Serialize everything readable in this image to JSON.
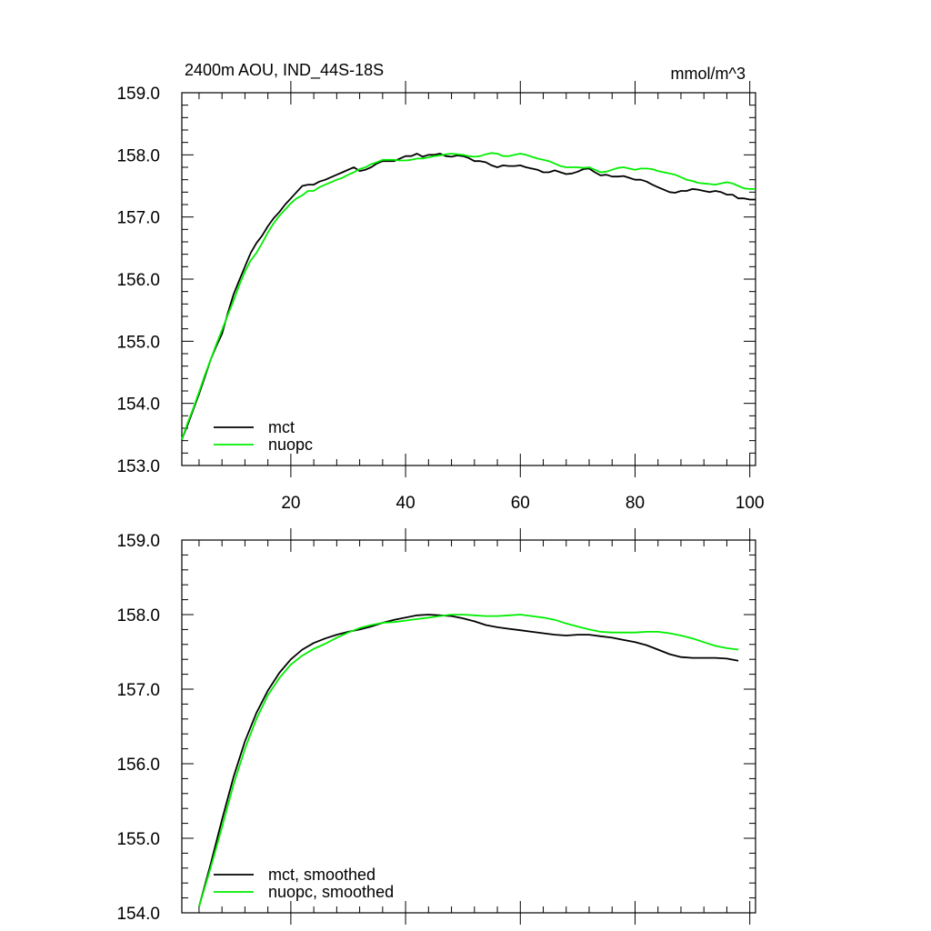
{
  "chart_data": [
    {
      "type": "line",
      "title_left": "2400m AOU, IND_44S-18S",
      "title_right": "mmol/m^3",
      "xlim": [
        1,
        101
      ],
      "ylim": [
        153.0,
        159.0
      ],
      "xticks": [
        20,
        40,
        60,
        80,
        100
      ],
      "xtick_labels": [
        "20",
        "40",
        "60",
        "80",
        "100"
      ],
      "yticks": [
        153.0,
        154.0,
        155.0,
        156.0,
        157.0,
        158.0,
        159.0
      ],
      "ytick_labels": [
        "153.0",
        "154.0",
        "155.0",
        "156.0",
        "157.0",
        "158.0",
        "159.0"
      ],
      "legend_position": "bottom-left",
      "series": [
        {
          "name": "mct",
          "color": "#000000",
          "x": [
            1,
            2,
            3,
            4,
            5,
            6,
            7,
            8,
            9,
            10,
            11,
            12,
            13,
            14,
            15,
            16,
            17,
            18,
            19,
            20,
            21,
            22,
            23,
            24,
            25,
            26,
            27,
            28,
            29,
            30,
            31,
            32,
            33,
            34,
            35,
            36,
            37,
            38,
            39,
            40,
            41,
            42,
            43,
            44,
            45,
            46,
            47,
            48,
            49,
            50,
            51,
            52,
            53,
            54,
            55,
            56,
            57,
            58,
            59,
            60,
            61,
            62,
            63,
            64,
            65,
            66,
            67,
            68,
            69,
            70,
            71,
            72,
            73,
            74,
            75,
            76,
            77,
            78,
            79,
            80,
            81,
            82,
            83,
            84,
            85,
            86,
            87,
            88,
            89,
            90,
            91,
            92,
            93,
            94,
            95,
            96,
            97,
            98,
            99,
            100,
            101
          ],
          "y": [
            153.42,
            153.65,
            153.9,
            154.15,
            154.42,
            154.7,
            154.92,
            155.12,
            155.45,
            155.75,
            155.98,
            156.2,
            156.42,
            156.58,
            156.7,
            156.85,
            156.98,
            157.08,
            157.2,
            157.3,
            157.4,
            157.5,
            157.52,
            157.52,
            157.57,
            157.6,
            157.64,
            157.68,
            157.72,
            157.76,
            157.8,
            157.74,
            157.76,
            157.8,
            157.86,
            157.9,
            157.9,
            157.9,
            157.94,
            157.98,
            157.98,
            158.02,
            157.97,
            158.0,
            158.0,
            158.02,
            157.98,
            157.97,
            157.99,
            157.98,
            157.95,
            157.9,
            157.9,
            157.88,
            157.83,
            157.8,
            157.83,
            157.82,
            157.82,
            157.83,
            157.8,
            157.78,
            157.76,
            157.72,
            157.72,
            157.75,
            157.72,
            157.69,
            157.7,
            157.73,
            157.77,
            157.78,
            157.72,
            157.67,
            157.68,
            157.65,
            157.65,
            157.66,
            157.63,
            157.6,
            157.6,
            157.57,
            157.52,
            157.48,
            157.44,
            157.4,
            157.39,
            157.42,
            157.42,
            157.45,
            157.44,
            157.42,
            157.4,
            157.42,
            157.4,
            157.36,
            157.36,
            157.3,
            157.3,
            157.28,
            157.28
          ]
        },
        {
          "name": "nuopc",
          "color": "#00ee00",
          "x": [
            1,
            2,
            3,
            4,
            5,
            6,
            7,
            8,
            9,
            10,
            11,
            12,
            13,
            14,
            15,
            16,
            17,
            18,
            19,
            20,
            21,
            22,
            23,
            24,
            25,
            26,
            27,
            28,
            29,
            30,
            31,
            32,
            33,
            34,
            35,
            36,
            37,
            38,
            39,
            40,
            41,
            42,
            43,
            44,
            45,
            46,
            47,
            48,
            49,
            50,
            51,
            52,
            53,
            54,
            55,
            56,
            57,
            58,
            59,
            60,
            61,
            62,
            63,
            64,
            65,
            66,
            67,
            68,
            69,
            70,
            71,
            72,
            73,
            74,
            75,
            76,
            77,
            78,
            79,
            80,
            81,
            82,
            83,
            84,
            85,
            86,
            87,
            88,
            89,
            90,
            91,
            92,
            93,
            94,
            95,
            96,
            97,
            98,
            99,
            100,
            101
          ],
          "y": [
            153.42,
            153.68,
            153.92,
            154.18,
            154.45,
            154.7,
            154.95,
            155.18,
            155.42,
            155.65,
            155.9,
            156.12,
            156.3,
            156.42,
            156.58,
            156.75,
            156.9,
            157.02,
            157.12,
            157.22,
            157.3,
            157.35,
            157.42,
            157.42,
            157.48,
            157.52,
            157.56,
            157.6,
            157.63,
            157.68,
            157.72,
            157.77,
            157.8,
            157.85,
            157.88,
            157.92,
            157.92,
            157.92,
            157.91,
            157.91,
            157.92,
            157.94,
            157.94,
            157.96,
            157.98,
            157.99,
            158.01,
            158.02,
            158.01,
            158.0,
            157.98,
            157.97,
            157.98,
            158.01,
            158.03,
            158.02,
            157.98,
            157.98,
            158.0,
            158.02,
            158.0,
            157.97,
            157.94,
            157.92,
            157.9,
            157.86,
            157.82,
            157.8,
            157.8,
            157.8,
            157.79,
            157.8,
            157.76,
            157.72,
            157.73,
            157.76,
            157.79,
            157.8,
            157.78,
            157.76,
            157.78,
            157.78,
            157.77,
            157.74,
            157.72,
            157.7,
            157.68,
            157.64,
            157.6,
            157.58,
            157.55,
            157.54,
            157.53,
            157.52,
            157.54,
            157.56,
            157.54,
            157.5,
            157.46,
            157.45,
            157.45
          ]
        }
      ]
    },
    {
      "type": "line",
      "xlim": [
        1,
        101
      ],
      "ylim": [
        154.0,
        159.0
      ],
      "xticks": [
        20,
        40,
        60,
        80,
        100
      ],
      "yticks": [
        154.0,
        155.0,
        156.0,
        157.0,
        158.0,
        159.0
      ],
      "ytick_labels": [
        "154.0",
        "155.0",
        "156.0",
        "157.0",
        "158.0",
        "159.0"
      ],
      "legend_position": "bottom-left",
      "series": [
        {
          "name": "mct, smoothed",
          "color": "#000000",
          "x": [
            4,
            6,
            8,
            10,
            12,
            14,
            16,
            18,
            20,
            22,
            24,
            26,
            28,
            30,
            32,
            34,
            36,
            38,
            40,
            42,
            44,
            46,
            48,
            50,
            52,
            54,
            56,
            58,
            60,
            62,
            64,
            66,
            68,
            70,
            72,
            74,
            76,
            78,
            80,
            82,
            84,
            86,
            88,
            90,
            92,
            94,
            96,
            98
          ],
          "y": [
            154.08,
            154.65,
            155.25,
            155.82,
            156.3,
            156.68,
            156.98,
            157.22,
            157.4,
            157.53,
            157.62,
            157.68,
            157.73,
            157.77,
            157.8,
            157.84,
            157.89,
            157.93,
            157.96,
            157.99,
            158.0,
            157.99,
            157.98,
            157.95,
            157.91,
            157.86,
            157.83,
            157.81,
            157.79,
            157.77,
            157.75,
            157.73,
            157.72,
            157.73,
            157.73,
            157.71,
            157.69,
            157.66,
            157.63,
            157.59,
            157.53,
            157.47,
            157.43,
            157.42,
            157.42,
            157.42,
            157.41,
            157.38
          ]
        },
        {
          "name": "nuopc, smoothed",
          "color": "#00ee00",
          "x": [
            4,
            6,
            8,
            10,
            12,
            14,
            16,
            18,
            20,
            22,
            24,
            26,
            28,
            30,
            32,
            34,
            36,
            38,
            40,
            42,
            44,
            46,
            48,
            50,
            52,
            54,
            56,
            58,
            60,
            62,
            64,
            66,
            68,
            70,
            72,
            74,
            76,
            78,
            80,
            82,
            84,
            86,
            88,
            90,
            92,
            94,
            96,
            98
          ],
          "y": [
            154.08,
            154.6,
            155.15,
            155.72,
            156.2,
            156.6,
            156.92,
            157.15,
            157.33,
            157.45,
            157.54,
            157.61,
            157.69,
            157.76,
            157.82,
            157.86,
            157.89,
            157.9,
            157.92,
            157.94,
            157.96,
            157.98,
            158.0,
            158.0,
            157.99,
            157.98,
            157.98,
            157.99,
            158.0,
            157.98,
            157.96,
            157.93,
            157.88,
            157.84,
            157.8,
            157.77,
            157.76,
            157.76,
            157.76,
            157.77,
            157.77,
            157.75,
            157.72,
            157.68,
            157.63,
            157.58,
            157.55,
            157.53
          ]
        }
      ]
    }
  ]
}
